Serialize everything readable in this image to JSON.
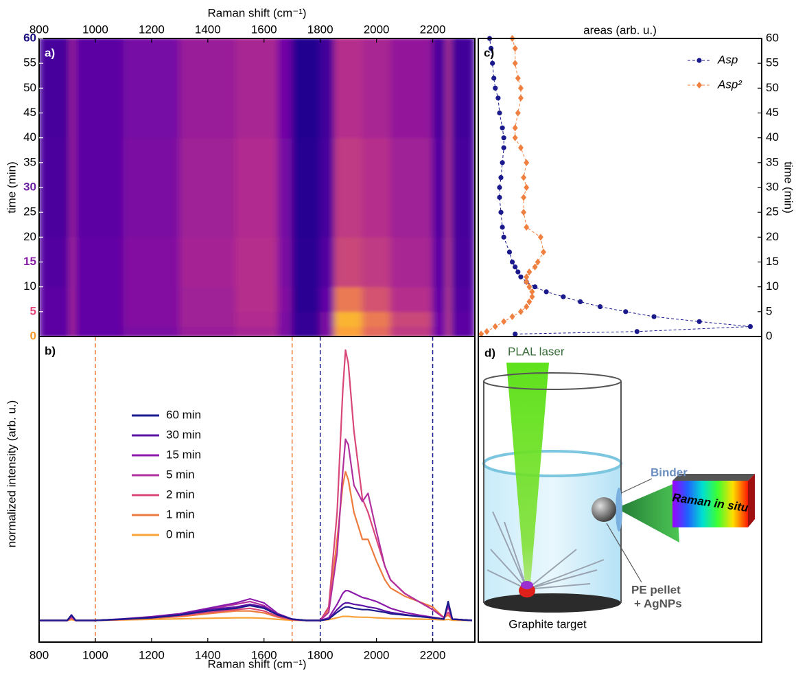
{
  "chart_data": [
    {
      "type": "heatmap",
      "panel_label": "a)",
      "xlabel": "Raman shift (cm⁻¹)",
      "ylabel": "time (min)",
      "x_axis": "top",
      "y_axis": "left",
      "xlim": [
        800,
        2350
      ],
      "xticks": [
        800,
        1000,
        1200,
        1400,
        1600,
        1800,
        2000,
        2200
      ],
      "ylim": [
        0,
        60
      ],
      "yticks": [
        0,
        5,
        10,
        15,
        20,
        25,
        30,
        35,
        40,
        45,
        50,
        55,
        60
      ],
      "ytick_colors": [
        "#f59a2a",
        "#e0457b",
        "#000000",
        "#8b1fa8",
        "#000000",
        "#000000",
        "#6a1fa0",
        "#000000",
        "#000000",
        "#000000",
        "#000000",
        "#000000",
        "#1b1080"
      ],
      "colormap": [
        "#0d0887",
        "#6a00a8",
        "#b12a90",
        "#e16462",
        "#fca636",
        "#f0f921"
      ],
      "clim": [
        0,
        1.2
      ],
      "xbins": [
        800,
        910,
        930,
        1100,
        1300,
        1500,
        1650,
        1700,
        1800,
        1850,
        1950,
        2050,
        2200,
        2250,
        2265,
        2350
      ],
      "ybins": [
        0,
        2,
        5,
        10,
        20,
        40,
        60
      ],
      "values": [
        [
          0.2,
          0.45,
          0.22,
          0.3,
          0.4,
          0.45,
          0.3,
          0.1,
          0.3,
          0.95,
          0.75,
          0.55,
          0.25,
          0.6,
          0.2
        ],
        [
          0.2,
          0.45,
          0.22,
          0.32,
          0.42,
          0.48,
          0.3,
          0.1,
          0.3,
          1.0,
          0.8,
          0.6,
          0.25,
          0.6,
          0.2
        ],
        [
          0.2,
          0.45,
          0.22,
          0.32,
          0.42,
          0.5,
          0.32,
          0.08,
          0.22,
          0.8,
          0.65,
          0.5,
          0.22,
          0.6,
          0.18
        ],
        [
          0.18,
          0.45,
          0.22,
          0.32,
          0.44,
          0.5,
          0.3,
          0.08,
          0.18,
          0.6,
          0.55,
          0.45,
          0.2,
          0.58,
          0.16
        ],
        [
          0.16,
          0.42,
          0.2,
          0.3,
          0.42,
          0.48,
          0.28,
          0.07,
          0.15,
          0.55,
          0.5,
          0.42,
          0.18,
          0.55,
          0.15
        ],
        [
          0.15,
          0.42,
          0.2,
          0.28,
          0.4,
          0.45,
          0.26,
          0.06,
          0.14,
          0.5,
          0.45,
          0.38,
          0.16,
          0.55,
          0.14
        ]
      ]
    },
    {
      "type": "line",
      "panel_label": "b)",
      "xlabel": "Raman shift (cm⁻¹)",
      "ylabel": "normalized intensity (arb. u.)",
      "x_axis": "bottom",
      "legend": "upper left",
      "xlim": [
        800,
        2350
      ],
      "xticks": [
        800,
        1000,
        1200,
        1400,
        1600,
        1800,
        2000,
        2200
      ],
      "ylim": [
        -0.08,
        1.05
      ],
      "vlines": [
        {
          "value": 1000,
          "color": "#f07a3a"
        },
        {
          "value": 1700,
          "color": "#f07a3a"
        },
        {
          "value": 1800,
          "color": "#1a1a8c"
        },
        {
          "value": 2200,
          "color": "#1a1a8c"
        }
      ],
      "x": [
        800,
        900,
        915,
        930,
        1000,
        1100,
        1200,
        1300,
        1400,
        1450,
        1500,
        1550,
        1600,
        1650,
        1700,
        1750,
        1800,
        1830,
        1860,
        1880,
        1890,
        1900,
        1920,
        1950,
        1970,
        2000,
        2030,
        2050,
        2100,
        2150,
        2200,
        2240,
        2255,
        2270,
        2340
      ],
      "series": [
        {
          "name": "60 min",
          "color": "#1a1a8c",
          "values": [
            0,
            0,
            0.02,
            0,
            0,
            0.005,
            0.01,
            0.02,
            0.035,
            0.04,
            0.045,
            0.055,
            0.045,
            0.02,
            0.005,
            0,
            0,
            0.005,
            0.03,
            0.045,
            0.05,
            0.05,
            0.045,
            0.04,
            0.04,
            0.035,
            0.03,
            0.025,
            0.02,
            0.015,
            0.01,
            0.005,
            0.07,
            0.005,
            0
          ]
        },
        {
          "name": "30 min",
          "color": "#5b13a5",
          "values": [
            0,
            0,
            0.02,
            0,
            0,
            0.005,
            0.012,
            0.022,
            0.04,
            0.045,
            0.05,
            0.06,
            0.05,
            0.022,
            0.005,
            0,
            0,
            0.005,
            0.04,
            0.06,
            0.065,
            0.065,
            0.06,
            0.055,
            0.05,
            0.045,
            0.035,
            0.03,
            0.022,
            0.015,
            0.01,
            0.005,
            0.065,
            0.005,
            0
          ]
        },
        {
          "name": "15 min",
          "color": "#8b1aab",
          "values": [
            0,
            0,
            0.02,
            0,
            0,
            0.006,
            0.014,
            0.025,
            0.045,
            0.055,
            0.065,
            0.08,
            0.065,
            0.025,
            0.005,
            0,
            0,
            0.01,
            0.06,
            0.1,
            0.11,
            0.11,
            0.1,
            0.085,
            0.08,
            0.07,
            0.055,
            0.045,
            0.03,
            0.02,
            0.012,
            0.005,
            0.06,
            0.005,
            0
          ]
        },
        {
          "name": "5 min",
          "color": "#b22f9e",
          "values": [
            0,
            0,
            0.015,
            0,
            0,
            0.005,
            0.012,
            0.022,
            0.04,
            0.05,
            0.06,
            0.07,
            0.055,
            0.02,
            0.004,
            0,
            0,
            0.03,
            0.25,
            0.55,
            0.67,
            0.65,
            0.5,
            0.44,
            0.47,
            0.33,
            0.2,
            0.15,
            0.1,
            0.07,
            0.04,
            0.01,
            0.05,
            0.005,
            0
          ]
        },
        {
          "name": "2 min",
          "color": "#d9467a",
          "values": [
            0,
            0,
            0.01,
            0,
            0,
            0.004,
            0.01,
            0.018,
            0.03,
            0.035,
            0.04,
            0.045,
            0.035,
            0.015,
            0.003,
            0,
            0,
            0.05,
            0.4,
            0.85,
            1.0,
            0.95,
            0.7,
            0.45,
            0.4,
            0.3,
            0.2,
            0.15,
            0.1,
            0.07,
            0.04,
            0.01,
            0.03,
            0.005,
            0
          ]
        },
        {
          "name": "1 min",
          "color": "#ee7a3d",
          "values": [
            0,
            0,
            0.008,
            0,
            0,
            0.003,
            0.008,
            0.014,
            0.025,
            0.03,
            0.035,
            0.035,
            0.028,
            0.012,
            0.002,
            0,
            0,
            0.04,
            0.3,
            0.5,
            0.55,
            0.52,
            0.4,
            0.3,
            0.3,
            0.22,
            0.15,
            0.12,
            0.09,
            0.07,
            0.05,
            0.01,
            0.02,
            0.004,
            0
          ]
        },
        {
          "name": "0 min",
          "color": "#f8a33a",
          "values": [
            0,
            0,
            0.003,
            0,
            0,
            0.002,
            0.004,
            0.006,
            0.008,
            0.009,
            0.01,
            0.01,
            0.008,
            0.004,
            0.001,
            0,
            0,
            0.003,
            0.01,
            0.015,
            0.015,
            0.015,
            0.013,
            0.012,
            0.012,
            0.01,
            0.008,
            0.007,
            0.006,
            0.005,
            0.004,
            0.002,
            0.004,
            0.001,
            0
          ]
        }
      ]
    },
    {
      "type": "scatter",
      "panel_label": "c)",
      "xlabel": "areas (arb. u.)",
      "ylabel": "time (min)",
      "x_axis": "top",
      "y_axis": "right",
      "legend": "upper right",
      "xlim": [
        0,
        1
      ],
      "ylim": [
        0,
        60
      ],
      "yticks": [
        0,
        5,
        10,
        15,
        20,
        25,
        30,
        35,
        40,
        45,
        50,
        55,
        60
      ],
      "y": [
        0.5,
        1,
        2,
        3,
        4,
        5,
        6,
        7,
        8,
        9,
        10,
        11,
        12,
        13,
        14,
        15,
        17,
        20,
        22,
        25,
        28,
        30,
        32,
        35,
        38,
        40,
        42,
        45,
        48,
        50,
        52,
        55,
        58,
        60
      ],
      "series": [
        {
          "name": "Asp",
          "color": "#1a1a8c",
          "marker": "circle",
          "x": [
            0.13,
            0.56,
            0.96,
            0.78,
            0.62,
            0.52,
            0.43,
            0.36,
            0.3,
            0.24,
            0.2,
            0.17,
            0.15,
            0.14,
            0.13,
            0.12,
            0.11,
            0.09,
            0.085,
            0.08,
            0.075,
            0.075,
            0.08,
            0.085,
            0.09,
            0.09,
            0.085,
            0.075,
            0.07,
            0.06,
            0.055,
            0.05,
            0.045,
            0.04
          ]
        },
        {
          "name": "Asp²",
          "color": "#f08040",
          "marker": "diamond",
          "x": [
            0.01,
            0.03,
            0.06,
            0.09,
            0.12,
            0.15,
            0.17,
            0.18,
            0.19,
            0.19,
            0.18,
            0.17,
            0.17,
            0.18,
            0.2,
            0.21,
            0.23,
            0.22,
            0.17,
            0.16,
            0.16,
            0.17,
            0.16,
            0.17,
            0.15,
            0.13,
            0.13,
            0.14,
            0.15,
            0.15,
            0.14,
            0.13,
            0.13,
            0.12
          ]
        }
      ]
    }
  ],
  "diagram": {
    "panel_label": "d)",
    "laser": "PLAL laser",
    "binder": "Binder",
    "probe": "Raman in situ",
    "pellet": [
      "PE pellet",
      "+ AgNPs"
    ],
    "target": "Graphite target"
  }
}
